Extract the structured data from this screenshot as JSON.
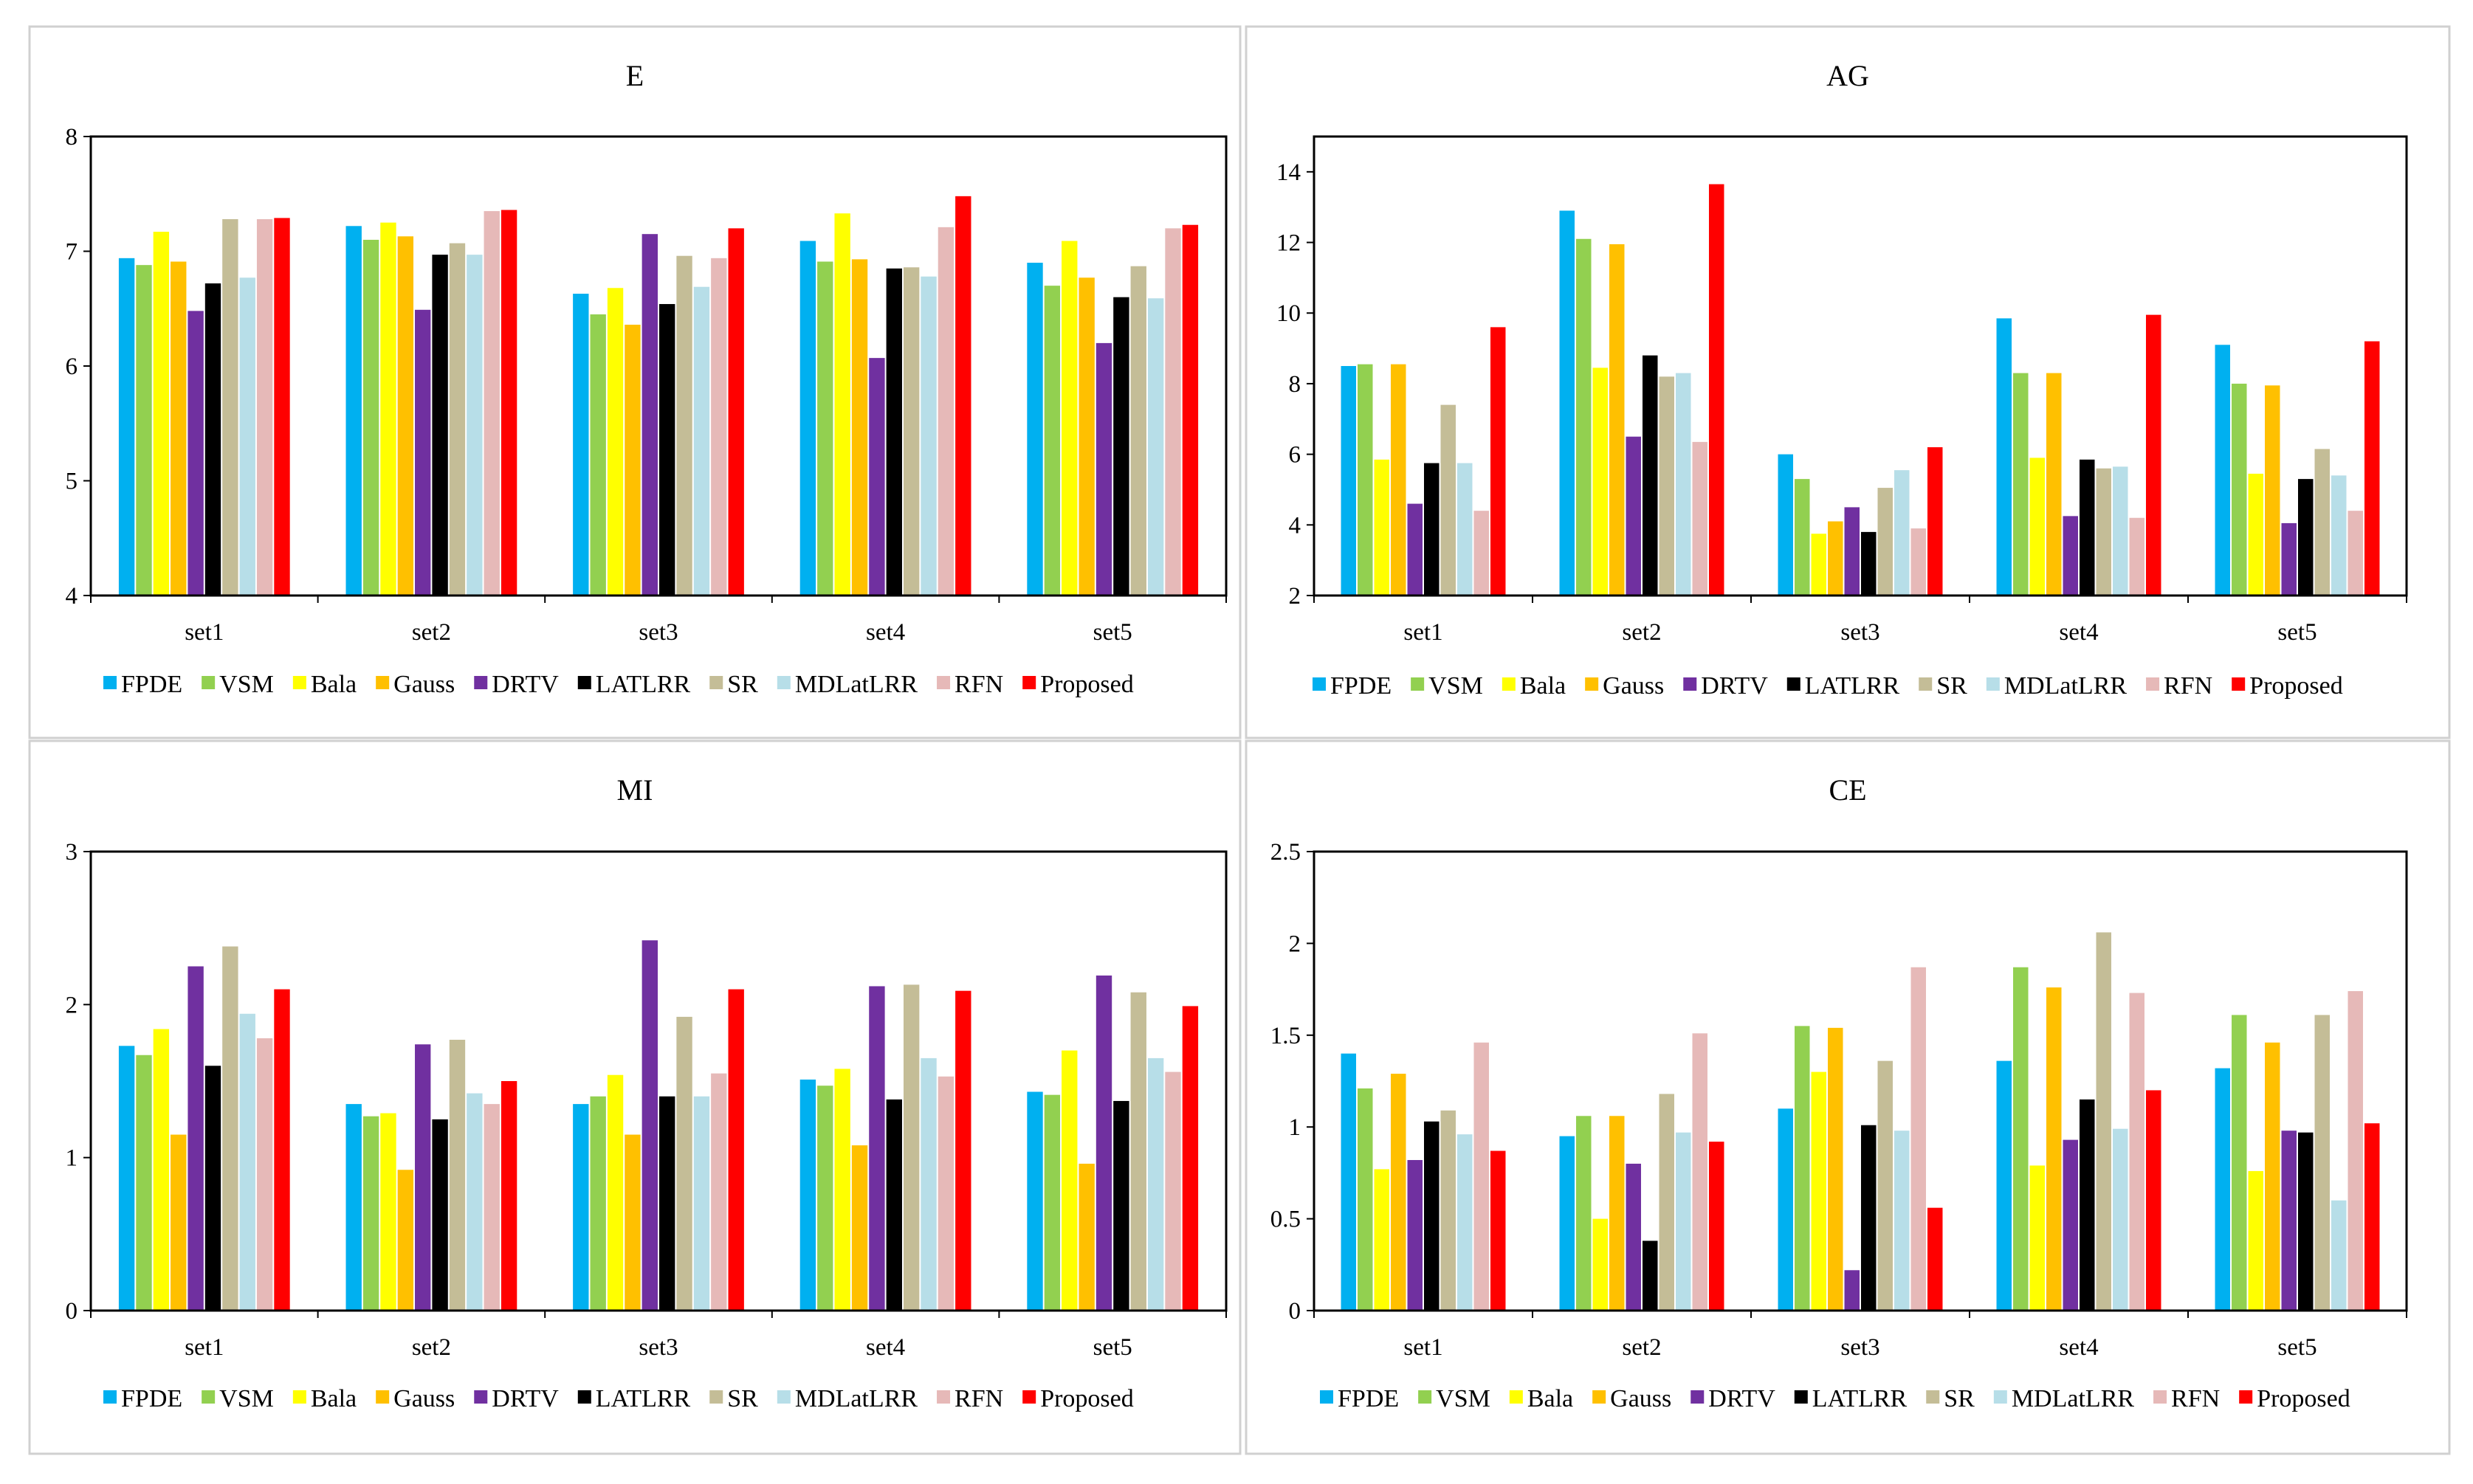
{
  "chart_data": {
    "type": "bar",
    "categories": [
      "set1",
      "set2",
      "set3",
      "set4",
      "set5"
    ],
    "series_names": [
      "FPDE",
      "VSM",
      "Bala",
      "Gauss",
      "DRTV",
      "LATLRR",
      "SR",
      "MDLatLRR",
      "RFN",
      "Proposed"
    ],
    "colors": {
      "FPDE": "#00b0f0",
      "VSM": "#92d050",
      "Bala": "#ffff00",
      "Gauss": "#ffc000",
      "DRTV": "#7030a0",
      "LATLRR": "#000000",
      "SR": "#c4bd97",
      "MDLatLRR": "#b7dee8",
      "RFN": "#e6b9b8",
      "Proposed": "#ff0000"
    },
    "legend_position": "bottom",
    "charts": [
      {
        "title": "E",
        "ylim": [
          4,
          8
        ],
        "yticks": [
          "4",
          "5",
          "6",
          "7",
          "8"
        ],
        "ytick_values": [
          4,
          5,
          6,
          7,
          8
        ],
        "values": {
          "FPDE": [
            6.94,
            7.22,
            6.63,
            7.09,
            6.9
          ],
          "VSM": [
            6.88,
            7.1,
            6.45,
            6.91,
            6.7
          ],
          "Bala": [
            7.17,
            7.25,
            6.68,
            7.33,
            7.09
          ],
          "Gauss": [
            6.91,
            7.13,
            6.36,
            6.93,
            6.77
          ],
          "DRTV": [
            6.48,
            6.49,
            7.15,
            6.07,
            6.2
          ],
          "LATLRR": [
            6.72,
            6.97,
            6.54,
            6.85,
            6.6
          ],
          "SR": [
            7.28,
            7.07,
            6.96,
            6.86,
            6.87
          ],
          "MDLatLRR": [
            6.77,
            6.97,
            6.69,
            6.78,
            6.59
          ],
          "RFN": [
            7.28,
            7.35,
            6.94,
            7.21,
            7.2
          ],
          "Proposed": [
            7.29,
            7.36,
            7.2,
            7.48,
            7.23
          ]
        }
      },
      {
        "title": "AG",
        "ylim": [
          2,
          15
        ],
        "yticks": [
          "2",
          "4",
          "6",
          "8",
          "10",
          "12",
          "14"
        ],
        "ytick_values": [
          2,
          4,
          6,
          8,
          10,
          12,
          14
        ],
        "values": {
          "FPDE": [
            8.5,
            12.9,
            6.0,
            9.85,
            9.1
          ],
          "VSM": [
            8.55,
            12.1,
            5.3,
            8.3,
            8.0
          ],
          "Bala": [
            5.85,
            8.45,
            3.75,
            5.9,
            5.45
          ],
          "Gauss": [
            8.55,
            11.95,
            4.1,
            8.3,
            7.95
          ],
          "DRTV": [
            4.6,
            6.5,
            4.5,
            4.25,
            4.05
          ],
          "LATLRR": [
            5.75,
            8.8,
            3.8,
            5.85,
            5.3
          ],
          "SR": [
            7.4,
            8.2,
            5.05,
            5.6,
            6.15
          ],
          "MDLatLRR": [
            5.75,
            8.3,
            5.55,
            5.65,
            5.4
          ],
          "RFN": [
            4.4,
            6.35,
            3.9,
            4.2,
            4.4
          ],
          "Proposed": [
            9.6,
            13.65,
            6.2,
            9.95,
            9.2
          ]
        }
      },
      {
        "title": "MI",
        "ylim": [
          0,
          3
        ],
        "yticks": [
          "0",
          "1",
          "2",
          "3"
        ],
        "ytick_values": [
          0,
          1,
          2,
          3
        ],
        "values": {
          "FPDE": [
            1.73,
            1.35,
            1.35,
            1.51,
            1.43
          ],
          "VSM": [
            1.67,
            1.27,
            1.4,
            1.47,
            1.41
          ],
          "Bala": [
            1.84,
            1.29,
            1.54,
            1.58,
            1.7
          ],
          "Gauss": [
            1.15,
            0.92,
            1.15,
            1.08,
            0.96
          ],
          "DRTV": [
            2.25,
            1.74,
            2.42,
            2.12,
            2.19
          ],
          "LATLRR": [
            1.6,
            1.25,
            1.4,
            1.38,
            1.37
          ],
          "SR": [
            2.38,
            1.77,
            1.92,
            2.13,
            2.08
          ],
          "MDLatLRR": [
            1.94,
            1.42,
            1.4,
            1.65,
            1.65
          ],
          "RFN": [
            1.78,
            1.35,
            1.55,
            1.53,
            1.56
          ],
          "Proposed": [
            2.1,
            1.5,
            2.1,
            2.09,
            1.99
          ]
        }
      },
      {
        "title": "CE",
        "ylim": [
          0,
          2.5
        ],
        "yticks": [
          "0",
          "0.5",
          "1",
          "1.5",
          "2",
          "2.5"
        ],
        "ytick_values": [
          0,
          0.5,
          1,
          1.5,
          2,
          2.5
        ],
        "values": {
          "FPDE": [
            1.4,
            0.95,
            1.1,
            1.36,
            1.32
          ],
          "VSM": [
            1.21,
            1.06,
            1.55,
            1.87,
            1.61
          ],
          "Bala": [
            0.77,
            0.5,
            1.3,
            0.79,
            0.76
          ],
          "Gauss": [
            1.29,
            1.06,
            1.54,
            1.76,
            1.46
          ],
          "DRTV": [
            0.82,
            0.8,
            0.22,
            0.93,
            0.98
          ],
          "LATLRR": [
            1.03,
            0.38,
            1.01,
            1.15,
            0.97
          ],
          "SR": [
            1.09,
            1.18,
            1.36,
            2.06,
            1.61
          ],
          "MDLatLRR": [
            0.96,
            0.97,
            0.98,
            0.99,
            0.6
          ],
          "RFN": [
            1.46,
            1.51,
            1.87,
            1.73,
            1.74
          ],
          "Proposed": [
            0.87,
            0.92,
            0.56,
            1.2,
            1.02
          ]
        }
      }
    ]
  }
}
